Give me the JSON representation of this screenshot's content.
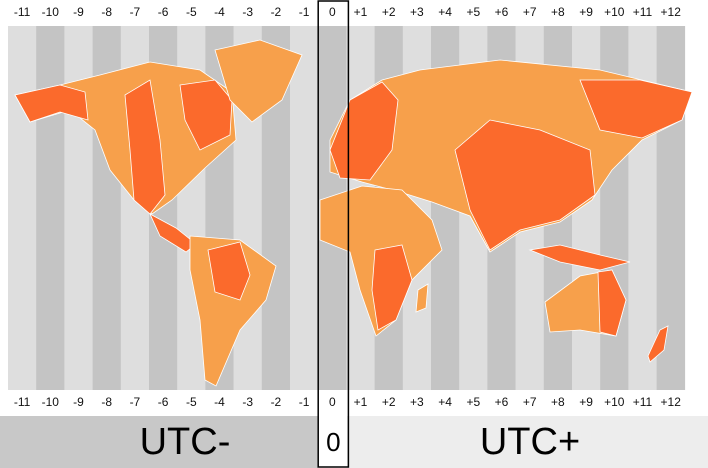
{
  "zones": [
    "-11",
    "-10",
    "-9",
    "-8",
    "-7",
    "-6",
    "-5",
    "-4",
    "-3",
    "-2",
    "-1",
    "0",
    "+1",
    "+2",
    "+3",
    "+4",
    "+5",
    "+6",
    "+7",
    "+8",
    "+9",
    "+10",
    "+11",
    "+12"
  ],
  "footer": {
    "left": "UTC-",
    "middle": "0",
    "right": "UTC+"
  }
}
